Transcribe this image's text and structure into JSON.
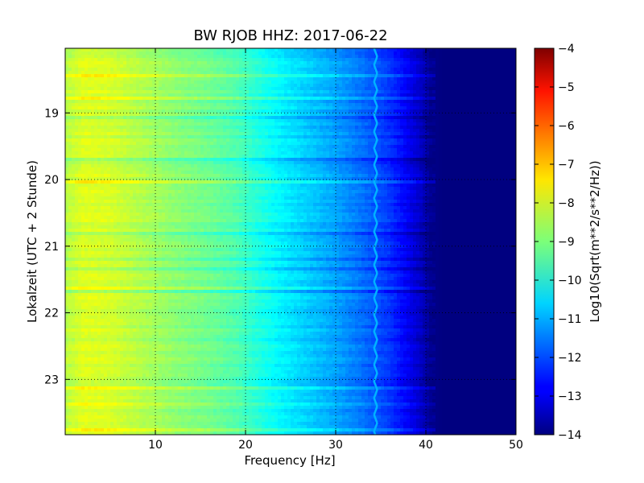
{
  "chart_data": {
    "type": "heatmap",
    "title": "BW RJOB HHZ: 2017-06-22",
    "xlabel": "Frequency [Hz]",
    "ylabel": "Lokalzeit (UTC + 2 Stunde)",
    "colorbar_label": "Log10(Sqrt(m**2/s**2/Hz))",
    "xlim": [
      0,
      50
    ],
    "ylim": [
      18.03,
      23.83
    ],
    "y_inverted": true,
    "x_ticks": [
      10,
      20,
      30,
      40,
      50
    ],
    "x_tick_labels": [
      "10",
      "20",
      "30",
      "40",
      "50"
    ],
    "y_ticks": [
      19,
      20,
      21,
      22,
      23
    ],
    "y_tick_labels": [
      "19",
      "20",
      "21",
      "22",
      "23"
    ],
    "color_range": [
      -14,
      -4
    ],
    "colorbar_ticks": [
      -4,
      -5,
      -6,
      -7,
      -8,
      -9,
      -10,
      -11,
      -12,
      -13,
      -14
    ],
    "colorbar_tick_labels": [
      "−4",
      "−5",
      "−6",
      "−7",
      "−8",
      "−9",
      "−10",
      "−11",
      "−12",
      "−13",
      "−14"
    ],
    "colormap": "jet",
    "grid": true,
    "grid_style": "dotted",
    "spectral_profile": {
      "frequency_hz": [
        0,
        2,
        5,
        8,
        12,
        16,
        19,
        21,
        24,
        27,
        30,
        33,
        36,
        38,
        39.5,
        40.5,
        42,
        50
      ],
      "log10_amplitude": [
        -8.5,
        -8.1,
        -8.2,
        -8.5,
        -8.9,
        -9.2,
        -9.5,
        -9.9,
        -10.4,
        -10.8,
        -11.2,
        -11.7,
        -12.3,
        -12.9,
        -13.4,
        -13.9,
        -14.0,
        -14.0
      ]
    },
    "resonance_line": {
      "center_frequency_hz": 34.5,
      "log10_amplitude": -11.0
    }
  }
}
